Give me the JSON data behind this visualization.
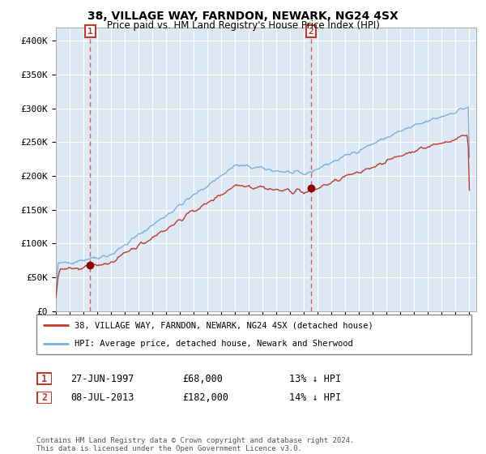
{
  "title": "38, VILLAGE WAY, FARNDON, NEWARK, NG24 4SX",
  "subtitle": "Price paid vs. HM Land Registry's House Price Index (HPI)",
  "background_color": "#dde8f5",
  "plot_bg_color": "#dde8f5",
  "ylim": [
    0,
    420000
  ],
  "yticks": [
    0,
    50000,
    100000,
    150000,
    200000,
    250000,
    300000,
    350000,
    400000
  ],
  "ytick_labels": [
    "£0",
    "£50K",
    "£100K",
    "£150K",
    "£200K",
    "£250K",
    "£300K",
    "£350K",
    "£400K"
  ],
  "hpi_color": "#7aaed6",
  "price_color": "#c0392b",
  "marker_color": "#8b0000",
  "vline_color": "#e05555",
  "purchase1_date": "27-JUN-1997",
  "purchase1_year": 1997.49,
  "purchase1_price": 68000,
  "purchase1_hpi_pct": "13% ↓ HPI",
  "purchase2_date": "08-JUL-2013",
  "purchase2_year": 2013.52,
  "purchase2_price": 182000,
  "purchase2_hpi_pct": "14% ↓ HPI",
  "legend1": "38, VILLAGE WAY, FARNDON, NEWARK, NG24 4SX (detached house)",
  "legend2": "HPI: Average price, detached house, Newark and Sherwood",
  "footnote": "Contains HM Land Registry data © Crown copyright and database right 2024.\nThis data is licensed under the Open Government Licence v3.0.",
  "label1": "1",
  "label2": "2"
}
